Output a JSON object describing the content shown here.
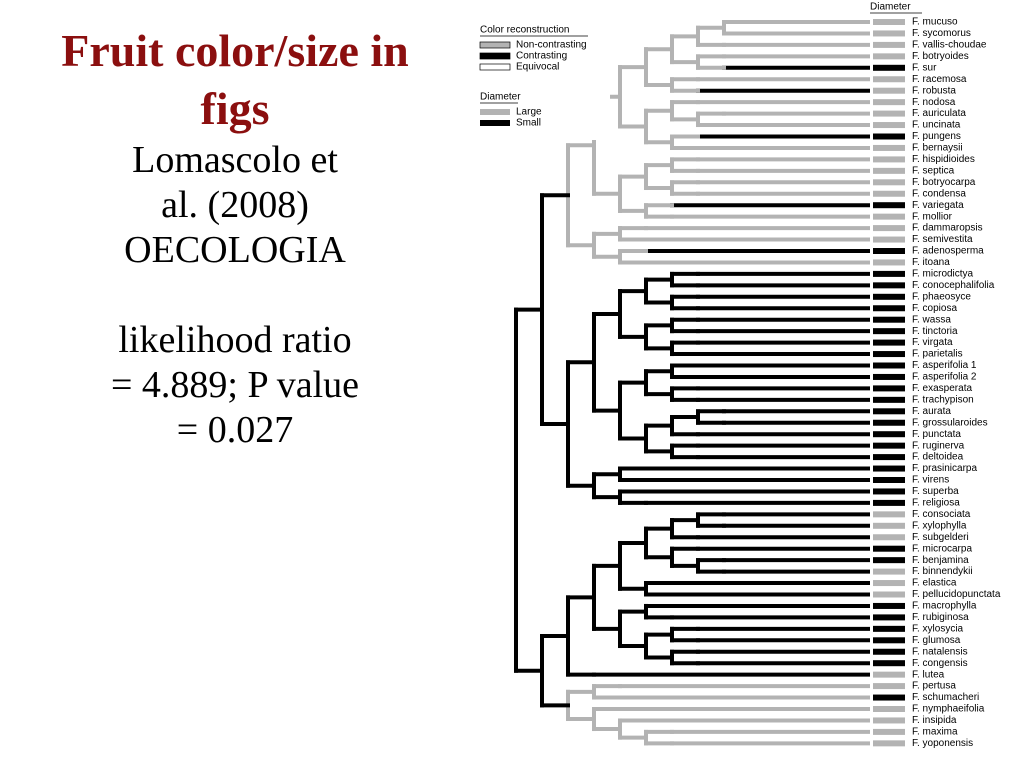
{
  "slide": {
    "title": "Fruit color/size in figs",
    "citation": [
      "Lomascolo et",
      "al. (2008)",
      "OECOLOGIA"
    ],
    "statistics": [
      "likelihood ratio",
      "= 4.889; P value",
      "= 0.027"
    ]
  },
  "figure": {
    "column_header": "Diameter",
    "legend": {
      "color_title": "Color reconstruction",
      "color_items": [
        {
          "label": "Non-contrasting",
          "color": "#b3b3b3"
        },
        {
          "label": "Contrasting",
          "color": "#000000"
        },
        {
          "label": "Equivocal",
          "color": "#ffffff"
        }
      ],
      "diameter_title": "Diameter",
      "diameter_items": [
        {
          "label": "Large",
          "color": "#b3b3b3"
        },
        {
          "label": "Small",
          "color": "#000000"
        }
      ]
    },
    "species": [
      "F.  mucuso",
      "F.  sycomorus",
      "F.  vallis-choudae",
      "F.  botryoides",
      "F.  sur",
      "F.  racemosa",
      "F.  robusta",
      "F. nodosa",
      "F.  auriculata",
      "F.  uncinata",
      "F.  pungens",
      "F.  bernaysii",
      "F.  hispidioides",
      "F.  septica",
      "F.  botryocarpa",
      "F.  condensa",
      "F.  variegata",
      "F.  mollior",
      "F.  dammaropsis",
      "F.  semivestita",
      "F.  adenosperma",
      "F.  itoana",
      "F.  microdictya",
      "F.  conocephalifolia",
      "F.  phaeosyce",
      "F.  copiosa",
      "F.  wassa",
      "F.  tinctoria",
      "F.  virgata",
      "F.  parietalis",
      "F.  asperifolia 1",
      "F.  asperifolia 2",
      "F.  exasperata",
      "F.  trachypison",
      "F.  aurata",
      "F.  grossularoides",
      "F.  punctata",
      "F.  ruginerva",
      "F.  deltoidea",
      "F.  prasinicarpa",
      "F.  virens",
      "F.  superba",
      "F.  religiosa",
      "F.  consociata",
      "F.  xylophylla",
      "F.  subgelderi",
      "F.  microcarpa",
      "F.  benjamina",
      "F.  binnendykii",
      "F.  elastica",
      "F.  pellucidopunctata",
      "F.  macrophylla",
      "F.  rubiginosa",
      "F.  xylosycia",
      "F.  glumosa",
      "F.  natalensis",
      "F.  congensis",
      "F.  lutea",
      "F.  pertusa",
      "F.  schumacheri",
      "F.  nymphaeifolia",
      "F.  insipida",
      "F.  maxima",
      "F.  yoponensis"
    ],
    "diameter_colors": [
      "#b3b3b3",
      "#b3b3b3",
      "#b3b3b3",
      "#b3b3b3",
      "#000000",
      "#b3b3b3",
      "#b3b3b3",
      "#b3b3b3",
      "#b3b3b3",
      "#b3b3b3",
      "#000000",
      "#b3b3b3",
      "#b3b3b3",
      "#b3b3b3",
      "#b3b3b3",
      "#b3b3b3",
      "#000000",
      "#b3b3b3",
      "#b3b3b3",
      "#b3b3b3",
      "#000000",
      "#b3b3b3",
      "#000000",
      "#000000",
      "#000000",
      "#000000",
      "#000000",
      "#000000",
      "#000000",
      "#000000",
      "#000000",
      "#000000",
      "#000000",
      "#000000",
      "#000000",
      "#000000",
      "#000000",
      "#000000",
      "#000000",
      "#000000",
      "#000000",
      "#000000",
      "#000000",
      "#b3b3b3",
      "#b3b3b3",
      "#b3b3b3",
      "#000000",
      "#000000",
      "#b3b3b3",
      "#b3b3b3",
      "#b3b3b3",
      "#000000",
      "#000000",
      "#000000",
      "#000000",
      "#000000",
      "#000000",
      "#b3b3b3",
      "#b3b3b3",
      "#000000",
      "#b3b3b3",
      "#b3b3b3",
      "#b3b3b3",
      "#b3b3b3"
    ]
  }
}
